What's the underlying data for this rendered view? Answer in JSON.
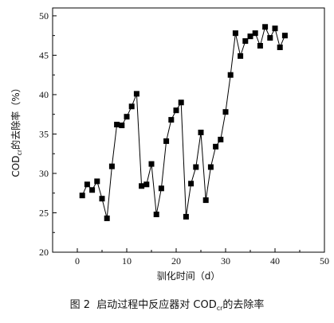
{
  "caption": {
    "figure_no": "图 2",
    "text_before": "启动过程中反应器对 COD",
    "text_sub": "cr",
    "text_after": "的去除率"
  },
  "chart_data": {
    "type": "line",
    "xlabel": "驯化时间（d）",
    "ylabel_main": "COD",
    "ylabel_sub": "cr",
    "ylabel_rest": "的去除率（%）",
    "xlim": [
      -5,
      50
    ],
    "ylim": [
      20,
      51
    ],
    "xticks": [
      0,
      10,
      20,
      30,
      40,
      50
    ],
    "yticks": [
      20,
      25,
      30,
      35,
      40,
      45,
      50
    ],
    "marker": "filled-square",
    "line_color": "#000000",
    "series": [
      {
        "x": [
          1,
          2,
          3,
          4,
          5,
          6,
          7,
          8,
          9,
          10,
          11,
          12,
          13,
          14,
          15,
          16,
          17,
          18,
          19,
          20,
          21,
          22,
          23,
          24,
          25,
          26,
          27,
          28,
          29,
          30,
          31,
          32,
          33,
          34,
          35,
          36,
          37,
          38,
          39,
          40,
          41,
          42
        ],
        "y": [
          27.2,
          28.6,
          27.9,
          29.0,
          26.8,
          24.3,
          30.9,
          36.2,
          36.1,
          37.2,
          38.5,
          40.1,
          28.4,
          28.6,
          31.2,
          24.8,
          28.1,
          34.1,
          36.8,
          38.0,
          39.0,
          24.5,
          28.7,
          30.8,
          35.2,
          26.6,
          30.8,
          33.4,
          34.3,
          37.8,
          42.5,
          47.8,
          44.9,
          46.8,
          47.4,
          47.8,
          46.2,
          48.6,
          47.2,
          48.4,
          46.0,
          47.5
        ]
      }
    ]
  }
}
